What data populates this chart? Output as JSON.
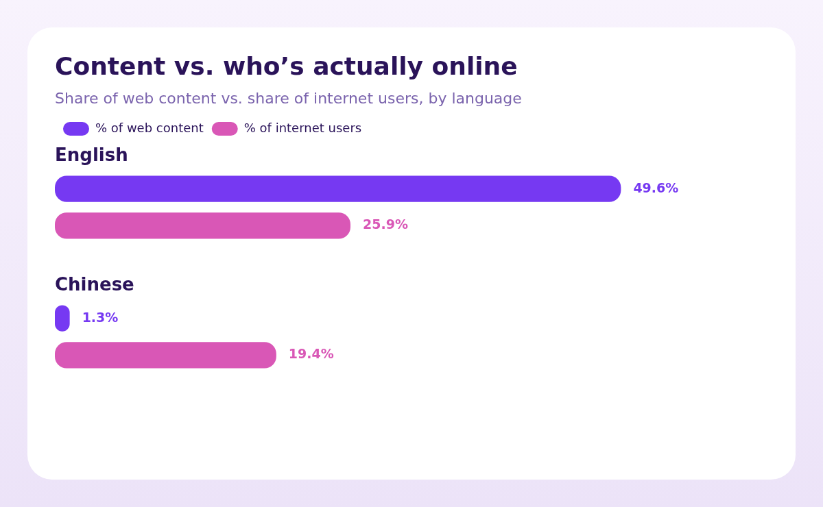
{
  "chart_data": {
    "type": "bar",
    "orientation": "horizontal",
    "title": "Content vs. who’s actually online",
    "subtitle": "Share of web content vs. share of internet users, by language",
    "categories": [
      "English",
      "Chinese"
    ],
    "series": [
      {
        "name": "% of web content",
        "color": "#7639f2",
        "values": [
          49.6,
          1.3
        ],
        "value_labels": [
          "49.6%",
          "1.3%"
        ]
      },
      {
        "name": "% of internet users",
        "color": "#d957b6",
        "values": [
          25.9,
          19.4
        ],
        "value_labels": [
          "25.9%",
          "19.4%"
        ]
      }
    ],
    "legend": "top left"
  }
}
